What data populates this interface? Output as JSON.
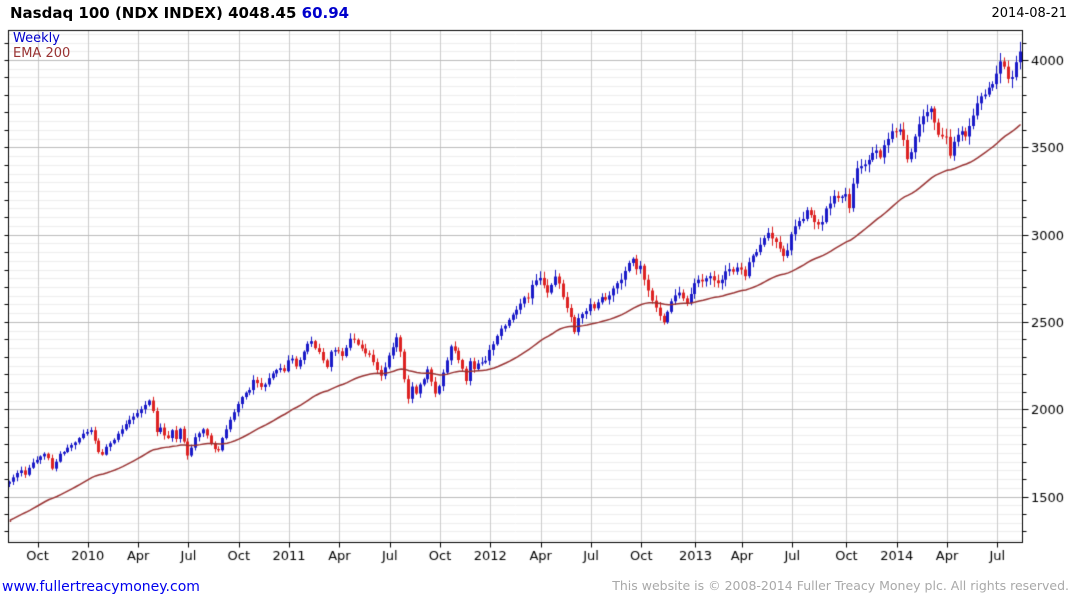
{
  "header": {
    "title": "Nasdaq 100 (NDX INDEX)",
    "last_price": "4048.45",
    "change": "60.94",
    "date": "2014-08-21"
  },
  "legend": {
    "interval_label": "Weekly",
    "ema_label": "EMA 200"
  },
  "footer": {
    "site_link": "www.fullertreacymoney.com",
    "copyright": "This website is © 2008-2014 Fuller Treacy Money plc. All rights reserved."
  },
  "chart_data": {
    "type": "candlestick",
    "title": "Nasdaq 100 (NDX INDEX)",
    "interval": "weekly",
    "start_date": "2009-08-17",
    "interval_days": 7,
    "end_date": "2014-08-18",
    "last_close": 4048.45,
    "change": 60.94,
    "y_axis": {
      "min": 1237,
      "max": 4169,
      "tick_step": 100,
      "label_step": 500,
      "side": "right",
      "labels": [
        4000,
        3500,
        3000,
        2500,
        2000,
        1500
      ]
    },
    "x_axis": {
      "tick_interval": "quarterly",
      "labels": [
        "Oct",
        "2010",
        "Apr",
        "Jul",
        "Oct",
        "2011",
        "Apr",
        "Jul",
        "Oct",
        "2012",
        "Apr",
        "Jul",
        "Oct",
        "2013",
        "Apr",
        "Jul",
        "Oct",
        "2014",
        "Apr",
        "Jul"
      ]
    },
    "series": [
      {
        "name": "Weekly",
        "type": "candlestick",
        "closes": [
          1585,
          1610,
          1635,
          1650,
          1625,
          1665,
          1695,
          1710,
          1730,
          1745,
          1720,
          1660,
          1700,
          1745,
          1755,
          1780,
          1795,
          1810,
          1835,
          1860,
          1870,
          1880,
          1820,
          1755,
          1740,
          1785,
          1805,
          1825,
          1860,
          1885,
          1915,
          1940,
          1958,
          1978,
          2000,
          2025,
          2050,
          1990,
          1870,
          1895,
          1850,
          1835,
          1880,
          1830,
          1888,
          1815,
          1735,
          1780,
          1840,
          1862,
          1885,
          1850,
          1805,
          1772,
          1765,
          1835,
          1885,
          1940,
          1983,
          2030,
          2070,
          2095,
          2110,
          2168,
          2150,
          2128,
          2142,
          2178,
          2205,
          2225,
          2235,
          2218,
          2280,
          2290,
          2245,
          2282,
          2330,
          2375,
          2390,
          2350,
          2328,
          2280,
          2242,
          2330,
          2338,
          2332,
          2305,
          2352,
          2404,
          2398,
          2370,
          2348,
          2320,
          2312,
          2270,
          2225,
          2192,
          2240,
          2308,
          2355,
          2412,
          2330,
          2172,
          2060,
          2130,
          2090,
          2142,
          2172,
          2228,
          2158,
          2090,
          2132,
          2210,
          2280,
          2360,
          2335,
          2282,
          2232,
          2162,
          2275,
          2230,
          2262,
          2268,
          2278,
          2340,
          2372,
          2420,
          2462,
          2478,
          2512,
          2542,
          2570,
          2605,
          2640,
          2635,
          2712,
          2738,
          2752,
          2710,
          2668,
          2712,
          2760,
          2720,
          2642,
          2580,
          2528,
          2442,
          2522,
          2545,
          2562,
          2602,
          2578,
          2612,
          2642,
          2628,
          2652,
          2692,
          2722,
          2742,
          2792,
          2838,
          2862,
          2802,
          2822,
          2742,
          2680,
          2622,
          2582,
          2535,
          2498,
          2558,
          2618,
          2652,
          2668,
          2635,
          2608,
          2660,
          2722,
          2742,
          2732,
          2750,
          2762,
          2738,
          2722,
          2742,
          2790,
          2802,
          2788,
          2812,
          2800,
          2762,
          2842,
          2880,
          2900,
          2942,
          2980,
          3010,
          2978,
          2958,
          2920,
          2878,
          2910,
          3002,
          3048,
          3078,
          3090,
          3140,
          3112,
          3072,
          3058,
          3072,
          3150,
          3178,
          3222,
          3210,
          3218,
          3232,
          3152,
          3292,
          3380,
          3392,
          3402,
          3428,
          3468,
          3482,
          3442,
          3512,
          3548,
          3592,
          3590,
          3602,
          3542,
          3432,
          3472,
          3562,
          3632,
          3678,
          3702,
          3722,
          3642,
          3572,
          3562,
          3560,
          3452,
          3532,
          3572,
          3592,
          3562,
          3622,
          3682,
          3752,
          3792,
          3802,
          3842,
          3862,
          3922,
          3992,
          3962,
          3892,
          3902,
          3987.51,
          4048.45
        ]
      }
    ],
    "overlays": [
      {
        "label": "EMA 200"
      }
    ],
    "colors": {
      "up": "#1A1AC8",
      "down": "#DD2222",
      "ema": "#993333",
      "grid_minor": "#EEEEEE",
      "grid_major": "#BBBBBB",
      "grid_vertical": "#CCCCCC",
      "axis": "#000000",
      "title_change": "#0000CC",
      "legend_weekly": "#0000CC",
      "link": "#0000EE",
      "copyright_text": "#A9A9A9"
    }
  }
}
